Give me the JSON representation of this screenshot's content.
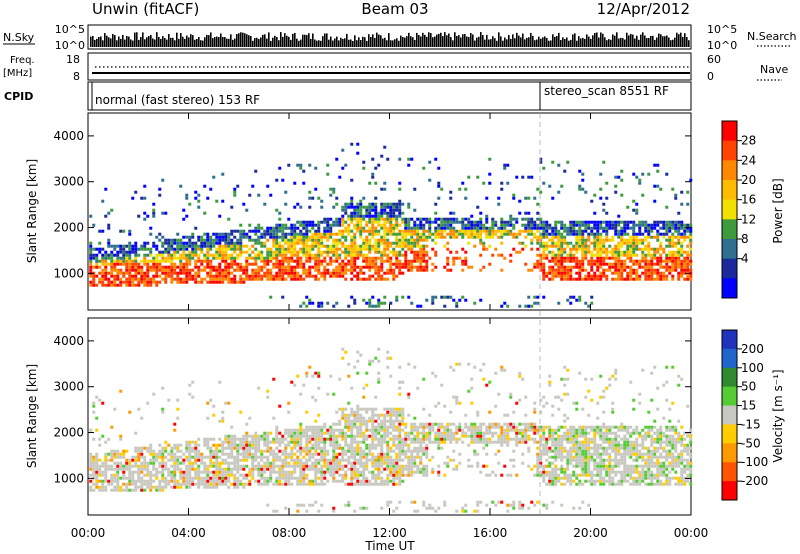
{
  "header": {
    "station": "Unwin (fitACF)",
    "beam": "Beam 03",
    "date": "12/Apr/2012"
  },
  "noise_panel": {
    "left_label": "N.Sky",
    "left_ticks": [
      "10^5",
      "10^0"
    ],
    "right_ticks": [
      "10^5",
      "10^0"
    ],
    "right_label": "N.Search"
  },
  "freq_panel": {
    "left_label_line1": "Freq.",
    "left_label_line2": "[MHz]",
    "left_ticks": [
      "18",
      "8"
    ],
    "right_ticks": [
      "60",
      "0"
    ],
    "right_label": "Nave"
  },
  "cpid_panel": {
    "label": "CPID",
    "programs": [
      {
        "text": "normal (fast stereo) 153 RF",
        "start_hour": 0
      },
      {
        "text": "stereo_scan 8551 RF",
        "start_hour": 18
      }
    ]
  },
  "time_axis": {
    "label": "Time UT",
    "ticks": [
      "00:00",
      "04:00",
      "08:00",
      "12:00",
      "16:00",
      "20:00",
      "00:00"
    ]
  },
  "chart_data": [
    {
      "type": "heatmap",
      "name": "power",
      "xlabel": "Time UT",
      "ylabel": "Slant Range [km]",
      "xlim": [
        0,
        24
      ],
      "ylim": [
        200,
        4500
      ],
      "y_ticks": [
        "1000",
        "2000",
        "3000",
        "4000"
      ],
      "colorbar": {
        "label": "Power [dB]",
        "ticks": [
          "28",
          "24",
          "20",
          "16",
          "12",
          "8",
          "4"
        ],
        "colors": [
          "#ff0000",
          "#ff4400",
          "#ff8800",
          "#ffbb00",
          "#f2e000",
          "#3d9a3d",
          "#2f6f8f",
          "#1a2a9c",
          "#0000ff"
        ]
      }
    },
    {
      "type": "heatmap",
      "name": "velocity",
      "xlabel": "Time UT",
      "ylabel": "Slant Range [km]",
      "xlim": [
        0,
        24
      ],
      "ylim": [
        200,
        4500
      ],
      "y_ticks": [
        "1000",
        "2000",
        "3000",
        "4000"
      ],
      "colorbar": {
        "label": "Velocity [m s⁻¹]",
        "ticks": [
          "200",
          "100",
          "50",
          "15",
          "-15",
          "-50",
          "-100",
          "-200"
        ],
        "colors": [
          "#2233bb",
          "#1f66cc",
          "#2f8a2f",
          "#55cc33",
          "#c8c8c0",
          "#ffcc00",
          "#ff9900",
          "#ff5500",
          "#ff0000"
        ]
      }
    }
  ]
}
